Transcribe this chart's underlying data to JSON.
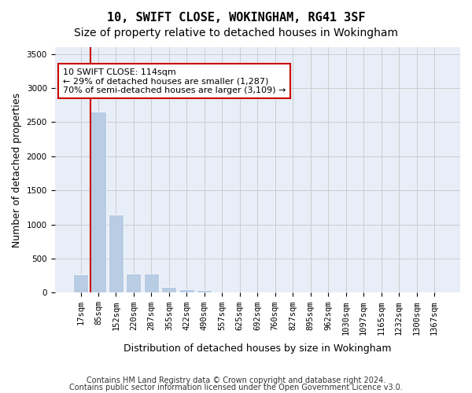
{
  "title1": "10, SWIFT CLOSE, WOKINGHAM, RG41 3SF",
  "title2": "Size of property relative to detached houses in Wokingham",
  "xlabel": "Distribution of detached houses by size in Wokingham",
  "ylabel": "Number of detached properties",
  "bin_labels": [
    "17sqm",
    "85sqm",
    "152sqm",
    "220sqm",
    "287sqm",
    "355sqm",
    "422sqm",
    "490sqm",
    "557sqm",
    "625sqm",
    "692sqm",
    "760sqm",
    "827sqm",
    "895sqm",
    "962sqm",
    "1030sqm",
    "1097sqm",
    "1165sqm",
    "1232sqm",
    "1300sqm",
    "1367sqm"
  ],
  "bar_values": [
    270,
    2650,
    1150,
    280,
    280,
    90,
    55,
    40,
    0,
    0,
    0,
    0,
    0,
    0,
    0,
    0,
    0,
    0,
    0,
    0,
    0
  ],
  "bar_color": "#b8cce4",
  "bar_edge_color": "#ffffff",
  "grid_color": "#cccccc",
  "background_color": "#e8eef8",
  "vline_x": 1,
  "vline_color": "#cc0000",
  "annotation_text": "10 SWIFT CLOSE: 114sqm\n← 29% of detached houses are smaller (1,287)\n70% of semi-detached houses are larger (3,109) →",
  "annotation_box_color": "#ffffff",
  "annotation_box_edge": "#cc0000",
  "ylim": [
    0,
    3600
  ],
  "yticks": [
    0,
    500,
    1000,
    1500,
    2000,
    2500,
    3000,
    3500
  ],
  "footer1": "Contains HM Land Registry data © Crown copyright and database right 2024.",
  "footer2": "Contains public sector information licensed under the Open Government Licence v3.0.",
  "title1_fontsize": 11,
  "title2_fontsize": 10,
  "xlabel_fontsize": 9,
  "ylabel_fontsize": 9,
  "tick_fontsize": 7.5,
  "footer_fontsize": 7
}
